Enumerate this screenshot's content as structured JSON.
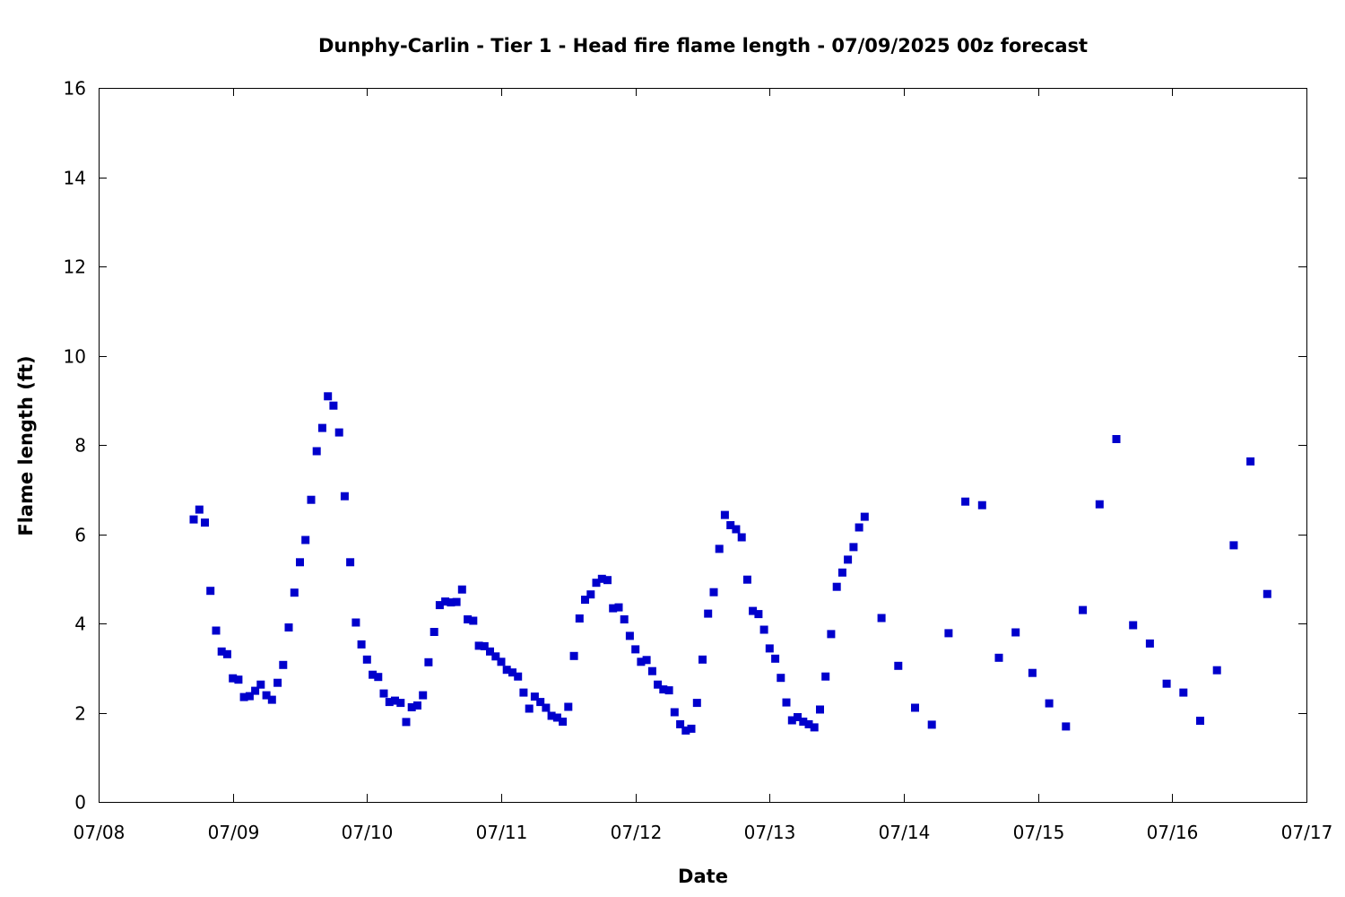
{
  "chart_data": {
    "type": "scatter",
    "title": "Dunphy-Carlin - Tier 1 - Head fire flame length - 07/09/2025 00z forecast",
    "xlabel": "Date",
    "ylabel": "Flame length (ft)",
    "xlim": [
      "07/08 00:00",
      "07/17 00:00"
    ],
    "ylim": [
      0,
      16
    ],
    "x_ticks": [
      "07/08",
      "07/09",
      "07/10",
      "07/11",
      "07/12",
      "07/13",
      "07/14",
      "07/15",
      "07/16",
      "07/17"
    ],
    "y_ticks": [
      "0",
      "2",
      "4",
      "6",
      "8",
      "10",
      "12",
      "14",
      "16"
    ],
    "grid": false,
    "legend": "none",
    "marker_color": "#0000cc",
    "series": [
      {
        "points": [
          [
            "07/08 17:00",
            6.33
          ],
          [
            "07/08 18:00",
            6.55
          ],
          [
            "07/08 19:00",
            6.26
          ],
          [
            "07/08 20:00",
            4.73
          ],
          [
            "07/08 21:00",
            3.84
          ],
          [
            "07/08 22:00",
            3.37
          ],
          [
            "07/08 23:00",
            3.31
          ],
          [
            "07/09 00:00",
            2.77
          ],
          [
            "07/09 01:00",
            2.74
          ],
          [
            "07/09 02:00",
            2.35
          ],
          [
            "07/09 03:00",
            2.37
          ],
          [
            "07/09 04:00",
            2.49
          ],
          [
            "07/09 05:00",
            2.63
          ],
          [
            "07/09 06:00",
            2.39
          ],
          [
            "07/09 07:00",
            2.29
          ],
          [
            "07/09 08:00",
            2.67
          ],
          [
            "07/09 09:00",
            3.07
          ],
          [
            "07/09 10:00",
            3.91
          ],
          [
            "07/09 11:00",
            4.69
          ],
          [
            "07/09 12:00",
            5.37
          ],
          [
            "07/09 13:00",
            5.87
          ],
          [
            "07/09 14:00",
            6.77
          ],
          [
            "07/09 15:00",
            7.86
          ],
          [
            "07/09 16:00",
            8.38
          ],
          [
            "07/09 17:00",
            9.09
          ],
          [
            "07/09 18:00",
            8.88
          ],
          [
            "07/09 19:00",
            8.28
          ],
          [
            "07/09 20:00",
            6.85
          ],
          [
            "07/09 21:00",
            5.37
          ],
          [
            "07/09 22:00",
            4.02
          ],
          [
            "07/09 23:00",
            3.53
          ],
          [
            "07/10 00:00",
            3.19
          ],
          [
            "07/10 01:00",
            2.85
          ],
          [
            "07/10 02:00",
            2.8
          ],
          [
            "07/10 03:00",
            2.43
          ],
          [
            "07/10 04:00",
            2.24
          ],
          [
            "07/10 05:00",
            2.27
          ],
          [
            "07/10 06:00",
            2.22
          ],
          [
            "07/10 07:00",
            1.79
          ],
          [
            "07/10 08:00",
            2.12
          ],
          [
            "07/10 09:00",
            2.16
          ],
          [
            "07/10 10:00",
            2.39
          ],
          [
            "07/10 11:00",
            3.13
          ],
          [
            "07/10 12:00",
            3.81
          ],
          [
            "07/10 13:00",
            4.41
          ],
          [
            "07/10 14:00",
            4.49
          ],
          [
            "07/10 15:00",
            4.47
          ],
          [
            "07/10 16:00",
            4.48
          ],
          [
            "07/10 17:00",
            4.76
          ],
          [
            "07/10 18:00",
            4.09
          ],
          [
            "07/10 19:00",
            4.06
          ],
          [
            "07/10 20:00",
            3.5
          ],
          [
            "07/10 21:00",
            3.49
          ],
          [
            "07/10 22:00",
            3.37
          ],
          [
            "07/10 23:00",
            3.26
          ],
          [
            "07/11 00:00",
            3.14
          ],
          [
            "07/11 01:00",
            2.96
          ],
          [
            "07/11 02:00",
            2.9
          ],
          [
            "07/11 03:00",
            2.81
          ],
          [
            "07/11 04:00",
            2.45
          ],
          [
            "07/11 05:00",
            2.09
          ],
          [
            "07/11 06:00",
            2.36
          ],
          [
            "07/11 07:00",
            2.24
          ],
          [
            "07/11 08:00",
            2.11
          ],
          [
            "07/11 09:00",
            1.93
          ],
          [
            "07/11 10:00",
            1.89
          ],
          [
            "07/11 11:00",
            1.8
          ],
          [
            "07/11 12:00",
            2.13
          ],
          [
            "07/11 13:00",
            3.27
          ],
          [
            "07/11 14:00",
            4.11
          ],
          [
            "07/11 15:00",
            4.53
          ],
          [
            "07/11 16:00",
            4.65
          ],
          [
            "07/11 17:00",
            4.91
          ],
          [
            "07/11 18:00",
            5.0
          ],
          [
            "07/11 19:00",
            4.97
          ],
          [
            "07/11 20:00",
            4.34
          ],
          [
            "07/11 21:00",
            4.36
          ],
          [
            "07/11 22:00",
            4.09
          ],
          [
            "07/11 23:00",
            3.72
          ],
          [
            "07/12 00:00",
            3.42
          ],
          [
            "07/12 01:00",
            3.14
          ],
          [
            "07/12 02:00",
            3.18
          ],
          [
            "07/12 03:00",
            2.93
          ],
          [
            "07/12 04:00",
            2.63
          ],
          [
            "07/12 05:00",
            2.52
          ],
          [
            "07/12 06:00",
            2.5
          ],
          [
            "07/12 07:00",
            2.01
          ],
          [
            "07/12 08:00",
            1.74
          ],
          [
            "07/12 09:00",
            1.6
          ],
          [
            "07/12 10:00",
            1.64
          ],
          [
            "07/12 11:00",
            2.22
          ],
          [
            "07/12 12:00",
            3.19
          ],
          [
            "07/12 13:00",
            4.22
          ],
          [
            "07/12 14:00",
            4.7
          ],
          [
            "07/12 15:00",
            5.67
          ],
          [
            "07/12 16:00",
            6.43
          ],
          [
            "07/12 17:00",
            6.2
          ],
          [
            "07/12 18:00",
            6.11
          ],
          [
            "07/12 19:00",
            5.93
          ],
          [
            "07/12 20:00",
            4.98
          ],
          [
            "07/12 21:00",
            4.28
          ],
          [
            "07/12 22:00",
            4.21
          ],
          [
            "07/12 23:00",
            3.86
          ],
          [
            "07/13 00:00",
            3.44
          ],
          [
            "07/13 01:00",
            3.21
          ],
          [
            "07/13 02:00",
            2.78
          ],
          [
            "07/13 03:00",
            2.23
          ],
          [
            "07/13 04:00",
            1.83
          ],
          [
            "07/13 05:00",
            1.9
          ],
          [
            "07/13 06:00",
            1.8
          ],
          [
            "07/13 07:00",
            1.74
          ],
          [
            "07/13 08:00",
            1.67
          ],
          [
            "07/13 09:00",
            2.07
          ],
          [
            "07/13 10:00",
            2.81
          ],
          [
            "07/13 11:00",
            3.76
          ],
          [
            "07/13 12:00",
            4.82
          ],
          [
            "07/13 13:00",
            5.14
          ],
          [
            "07/13 14:00",
            5.43
          ],
          [
            "07/13 15:00",
            5.71
          ],
          [
            "07/13 16:00",
            6.15
          ],
          [
            "07/13 17:00",
            6.39
          ],
          [
            "07/13 20:00",
            4.12
          ],
          [
            "07/13 23:00",
            3.05
          ],
          [
            "07/14 02:00",
            2.11
          ],
          [
            "07/14 05:00",
            1.73
          ],
          [
            "07/14 08:00",
            3.78
          ],
          [
            "07/14 11:00",
            6.73
          ],
          [
            "07/14 14:00",
            6.65
          ],
          [
            "07/14 17:00",
            3.23
          ],
          [
            "07/14 20:00",
            3.8
          ],
          [
            "07/14 23:00",
            2.89
          ],
          [
            "07/15 02:00",
            2.21
          ],
          [
            "07/15 05:00",
            1.69
          ],
          [
            "07/15 08:00",
            4.3
          ],
          [
            "07/15 11:00",
            6.67
          ],
          [
            "07/15 14:00",
            8.13
          ],
          [
            "07/15 17:00",
            3.96
          ],
          [
            "07/15 20:00",
            3.55
          ],
          [
            "07/15 23:00",
            2.65
          ],
          [
            "07/16 02:00",
            2.45
          ],
          [
            "07/16 05:00",
            1.82
          ],
          [
            "07/16 08:00",
            2.95
          ],
          [
            "07/16 11:00",
            5.75
          ],
          [
            "07/16 14:00",
            7.63
          ],
          [
            "07/16 17:00",
            4.66
          ]
        ]
      }
    ]
  }
}
